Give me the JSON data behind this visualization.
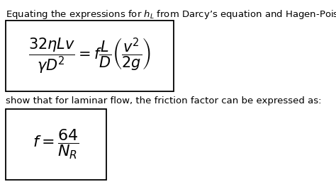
{
  "title_text": "Equating the expressions for $h_L$ from Darcy’s equation and Hagen-Poiseuille equation as follows",
  "eq1_latex": "$\\dfrac{32\\eta L v}{\\gamma D^2} = f\\dfrac{L}{D}\\left(\\dfrac{v^2}{2g}\\right)$",
  "eq2_label": "show that for laminar flow, the friction factor can be expressed as:",
  "eq2_latex": "$f = \\dfrac{64}{N_R}$",
  "bg_color": "#ffffff",
  "text_color": "#000000",
  "title_fontsize": 9.5,
  "eq1_fontsize": 15,
  "eq2_fontsize": 16,
  "label_fontsize": 9.5
}
